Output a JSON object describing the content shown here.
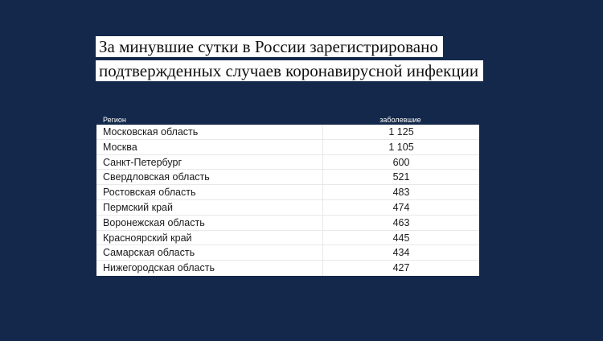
{
  "title": {
    "line1": "За минувшие сутки в России зарегистрировано",
    "line2": "подтвержденных случаев коронавирусной инфекции"
  },
  "chart_data": {
    "type": "table",
    "columns": [
      "Регион",
      "заболевшие"
    ],
    "rows": [
      {
        "region": "Московская область",
        "value": "1 125"
      },
      {
        "region": "Москва",
        "value": "1 105"
      },
      {
        "region": "Санкт-Петербург",
        "value": "600"
      },
      {
        "region": "Свердловская область",
        "value": "521"
      },
      {
        "region": "Ростовская область",
        "value": "483"
      },
      {
        "region": "Пермский край",
        "value": "474"
      },
      {
        "region": "Воронежская область",
        "value": "463"
      },
      {
        "region": "Красноярский край",
        "value": "445"
      },
      {
        "region": "Самарская область",
        "value": "434"
      },
      {
        "region": "Нижегородская область",
        "value": "427"
      }
    ]
  },
  "colors": {
    "background": "#13284a",
    "title_bg": "#ffffff",
    "table_bg": "#ffffff"
  }
}
